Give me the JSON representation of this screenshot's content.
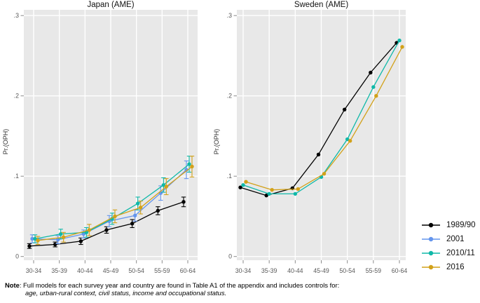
{
  "legend": {
    "entries": [
      {
        "label": "1989/90",
        "color": "#000000"
      },
      {
        "label": "2001",
        "color": "#6495ed"
      },
      {
        "label": "2010/11",
        "color": "#0fb8a8"
      },
      {
        "label": "2016",
        "color": "#d2a119"
      }
    ]
  },
  "note": {
    "label": "Note",
    "line1": ": Full models for each survey year and country are found in Table A1 of the appendix and includes controls for:",
    "line2": "age, urban-rural context, civil status, income and occupational status."
  },
  "style": {
    "panel_bg": "#e8e8e8",
    "grid_color": "#ffffff",
    "tick_color": "#8a8a8a"
  },
  "chart_data": [
    {
      "type": "line",
      "title": "Japan (AME)",
      "ylabel": "Pr.(OPH)",
      "xlabel": "",
      "categories": [
        "30-34",
        "35-39",
        "40-44",
        "45-49",
        "50-54",
        "55-59",
        "60-64"
      ],
      "ylim": [
        0,
        0.3
      ],
      "yticks": [
        0,
        0.1,
        0.2,
        0.3
      ],
      "ytick_labels": [
        "0",
        ".1",
        ".2",
        ".3"
      ],
      "grid": true,
      "legend_position": "figure-right",
      "series": [
        {
          "name": "1989/90",
          "color": "#000000",
          "values": [
            0.013,
            0.015,
            0.019,
            0.033,
            0.041,
            0.057,
            0.068
          ],
          "errors": [
            0.003,
            0.003,
            0.004,
            0.004,
            0.005,
            0.005,
            0.006
          ]
        },
        {
          "name": "2001",
          "color": "#6495ed",
          "values": [
            0.022,
            0.021,
            0.028,
            0.044,
            0.051,
            0.079,
            0.108
          ],
          "errors": [
            0.005,
            0.005,
            0.005,
            0.007,
            0.007,
            0.009,
            0.011
          ]
        },
        {
          "name": "2010/11",
          "color": "#0fb8a8",
          "values": [
            0.022,
            0.028,
            0.03,
            0.047,
            0.066,
            0.089,
            0.115
          ],
          "errors": [
            0.005,
            0.006,
            0.006,
            0.007,
            0.008,
            0.009,
            0.01
          ]
        },
        {
          "name": "2016",
          "color": "#d2a119",
          "values": [
            0.02,
            0.024,
            0.033,
            0.05,
            0.061,
            0.087,
            0.112
          ],
          "errors": [
            0.005,
            0.006,
            0.007,
            0.008,
            0.008,
            0.01,
            0.013
          ]
        }
      ]
    },
    {
      "type": "line",
      "title": "Sweden (AME)",
      "ylabel": "Pr.(OPH)",
      "xlabel": "",
      "categories": [
        "30-34",
        "35-39",
        "40-44",
        "45-49",
        "50-54",
        "55-59",
        "60-64"
      ],
      "ylim": [
        0,
        0.3
      ],
      "yticks": [
        0,
        0.1,
        0.2,
        0.3
      ],
      "ytick_labels": [
        "0",
        ".1",
        ".2",
        ".3"
      ],
      "grid": true,
      "legend_position": "figure-right",
      "series": [
        {
          "name": "1989/90",
          "color": "#000000",
          "values": [
            0.086,
            0.076,
            0.085,
            0.127,
            0.183,
            0.229,
            0.266
          ]
        },
        {
          "name": "2010/11",
          "color": "#0fb8a8",
          "values": [
            0.089,
            0.078,
            0.078,
            0.099,
            0.146,
            0.211,
            0.269
          ]
        },
        {
          "name": "2016",
          "color": "#d2a119",
          "values": [
            0.093,
            0.083,
            0.084,
            0.103,
            0.144,
            0.2,
            0.261
          ]
        }
      ]
    }
  ]
}
